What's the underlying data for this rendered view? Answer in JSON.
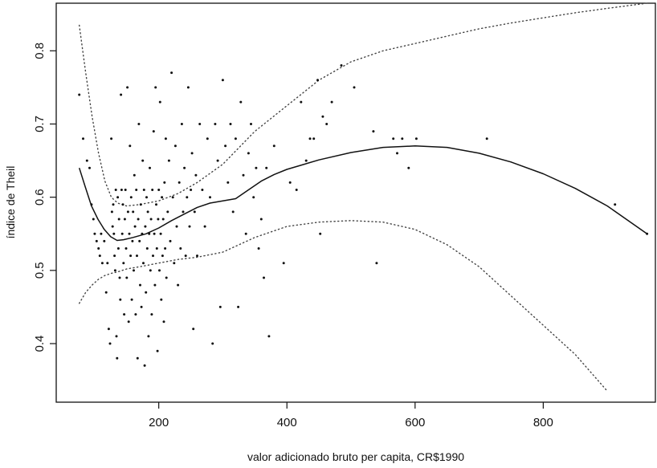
{
  "chart_data": {
    "type": "scatter",
    "title": "",
    "xlabel": "valor adicionado bruto per capita, CR$1990",
    "ylabel": "índice de Theil",
    "xlim": [
      40,
      975
    ],
    "ylim": [
      0.32,
      0.865
    ],
    "xticks": [
      200,
      400,
      600,
      800
    ],
    "yticks": [
      0.4,
      0.5,
      0.6,
      0.7,
      0.8
    ],
    "xtick_labels": [
      "200",
      "400",
      "600",
      "800"
    ],
    "ytick_labels": [
      "0.4",
      "0.5",
      "0.6",
      "0.7",
      "0.8"
    ],
    "grid": false,
    "legend": "none",
    "points": [
      [
        76,
        0.74
      ],
      [
        82,
        0.68
      ],
      [
        88,
        0.65
      ],
      [
        92,
        0.64
      ],
      [
        95,
        0.59
      ],
      [
        98,
        0.57
      ],
      [
        100,
        0.55
      ],
      [
        103,
        0.54
      ],
      [
        106,
        0.53
      ],
      [
        108,
        0.52
      ],
      [
        110,
        0.55
      ],
      [
        112,
        0.51
      ],
      [
        115,
        0.54
      ],
      [
        118,
        0.47
      ],
      [
        120,
        0.51
      ],
      [
        122,
        0.42
      ],
      [
        124,
        0.4
      ],
      [
        126,
        0.68
      ],
      [
        127,
        0.58
      ],
      [
        128,
        0.56
      ],
      [
        129,
        0.59
      ],
      [
        130,
        0.55
      ],
      [
        131,
        0.52
      ],
      [
        132,
        0.5
      ],
      [
        133,
        0.61
      ],
      [
        134,
        0.41
      ],
      [
        135,
        0.38
      ],
      [
        136,
        0.6
      ],
      [
        137,
        0.53
      ],
      [
        138,
        0.57
      ],
      [
        139,
        0.49
      ],
      [
        140,
        0.46
      ],
      [
        141,
        0.74
      ],
      [
        142,
        0.61
      ],
      [
        143,
        0.55
      ],
      [
        144,
        0.59
      ],
      [
        145,
        0.51
      ],
      [
        146,
        0.44
      ],
      [
        147,
        0.57
      ],
      [
        148,
        0.61
      ],
      [
        149,
        0.53
      ],
      [
        150,
        0.49
      ],
      [
        151,
        0.75
      ],
      [
        152,
        0.58
      ],
      [
        153,
        0.43
      ],
      [
        154,
        0.55
      ],
      [
        155,
        0.67
      ],
      [
        156,
        0.52
      ],
      [
        157,
        0.6
      ],
      [
        158,
        0.46
      ],
      [
        159,
        0.54
      ],
      [
        160,
        0.58
      ],
      [
        161,
        0.5
      ],
      [
        162,
        0.63
      ],
      [
        163,
        0.56
      ],
      [
        164,
        0.44
      ],
      [
        165,
        0.61
      ],
      [
        166,
        0.52
      ],
      [
        167,
        0.38
      ],
      [
        168,
        0.57
      ],
      [
        169,
        0.7
      ],
      [
        170,
        0.54
      ],
      [
        171,
        0.48
      ],
      [
        172,
        0.59
      ],
      [
        173,
        0.45
      ],
      [
        174,
        0.55
      ],
      [
        175,
        0.65
      ],
      [
        176,
        0.51
      ],
      [
        177,
        0.61
      ],
      [
        178,
        0.37
      ],
      [
        179,
        0.56
      ],
      [
        180,
        0.47
      ],
      [
        181,
        0.6
      ],
      [
        182,
        0.53
      ],
      [
        183,
        0.58
      ],
      [
        184,
        0.41
      ],
      [
        185,
        0.55
      ],
      [
        186,
        0.64
      ],
      [
        187,
        0.5
      ],
      [
        188,
        0.57
      ],
      [
        189,
        0.44
      ],
      [
        190,
        0.61
      ],
      [
        191,
        0.52
      ],
      [
        192,
        0.69
      ],
      [
        193,
        0.55
      ],
      [
        194,
        0.48
      ],
      [
        195,
        0.75
      ],
      [
        196,
        0.59
      ],
      [
        197,
        0.53
      ],
      [
        198,
        0.39
      ],
      [
        199,
        0.57
      ],
      [
        200,
        0.61
      ],
      [
        201,
        0.5
      ],
      [
        202,
        0.73
      ],
      [
        203,
        0.55
      ],
      [
        204,
        0.46
      ],
      [
        205,
        0.6
      ],
      [
        206,
        0.52
      ],
      [
        207,
        0.57
      ],
      [
        208,
        0.43
      ],
      [
        209,
        0.62
      ],
      [
        210,
        0.53
      ],
      [
        211,
        0.68
      ],
      [
        212,
        0.49
      ],
      [
        214,
        0.58
      ],
      [
        216,
        0.65
      ],
      [
        218,
        0.54
      ],
      [
        220,
        0.77
      ],
      [
        222,
        0.6
      ],
      [
        224,
        0.51
      ],
      [
        226,
        0.67
      ],
      [
        228,
        0.56
      ],
      [
        230,
        0.48
      ],
      [
        232,
        0.62
      ],
      [
        234,
        0.53
      ],
      [
        236,
        0.7
      ],
      [
        238,
        0.58
      ],
      [
        240,
        0.64
      ],
      [
        242,
        0.52
      ],
      [
        244,
        0.6
      ],
      [
        246,
        0.75
      ],
      [
        248,
        0.56
      ],
      [
        250,
        0.61
      ],
      [
        252,
        0.66
      ],
      [
        254,
        0.42
      ],
      [
        256,
        0.58
      ],
      [
        258,
        0.63
      ],
      [
        260,
        0.52
      ],
      [
        264,
        0.7
      ],
      [
        268,
        0.61
      ],
      [
        272,
        0.56
      ],
      [
        276,
        0.68
      ],
      [
        280,
        0.6
      ],
      [
        284,
        0.4
      ],
      [
        288,
        0.7
      ],
      [
        292,
        0.65
      ],
      [
        296,
        0.45
      ],
      [
        300,
        0.76
      ],
      [
        304,
        0.67
      ],
      [
        308,
        0.62
      ],
      [
        312,
        0.7
      ],
      [
        316,
        0.58
      ],
      [
        320,
        0.68
      ],
      [
        324,
        0.45
      ],
      [
        328,
        0.73
      ],
      [
        332,
        0.63
      ],
      [
        336,
        0.55
      ],
      [
        340,
        0.66
      ],
      [
        344,
        0.7
      ],
      [
        348,
        0.6
      ],
      [
        352,
        0.64
      ],
      [
        356,
        0.53
      ],
      [
        360,
        0.57
      ],
      [
        364,
        0.49
      ],
      [
        368,
        0.64
      ],
      [
        372,
        0.41
      ],
      [
        380,
        0.67
      ],
      [
        395,
        0.51
      ],
      [
        405,
        0.62
      ],
      [
        415,
        0.61
      ],
      [
        422,
        0.73
      ],
      [
        430,
        0.65
      ],
      [
        436,
        0.68
      ],
      [
        442,
        0.68
      ],
      [
        448,
        0.76
      ],
      [
        452,
        0.55
      ],
      [
        456,
        0.71
      ],
      [
        462,
        0.7
      ],
      [
        470,
        0.73
      ],
      [
        485,
        0.78
      ],
      [
        505,
        0.75
      ],
      [
        535,
        0.69
      ],
      [
        540,
        0.51
      ],
      [
        566,
        0.68
      ],
      [
        572,
        0.66
      ],
      [
        580,
        0.68
      ],
      [
        590,
        0.64
      ],
      [
        602,
        0.68
      ],
      [
        712,
        0.68
      ],
      [
        912,
        0.59
      ],
      [
        962,
        0.55
      ]
    ],
    "fit_curve": [
      [
        76,
        0.64
      ],
      [
        85,
        0.615
      ],
      [
        95,
        0.588
      ],
      [
        105,
        0.57
      ],
      [
        115,
        0.556
      ],
      [
        125,
        0.546
      ],
      [
        135,
        0.541
      ],
      [
        145,
        0.542
      ],
      [
        160,
        0.545
      ],
      [
        180,
        0.55
      ],
      [
        200,
        0.558
      ],
      [
        220,
        0.568
      ],
      [
        240,
        0.577
      ],
      [
        260,
        0.586
      ],
      [
        280,
        0.592
      ],
      [
        300,
        0.595
      ],
      [
        320,
        0.598
      ],
      [
        340,
        0.61
      ],
      [
        360,
        0.622
      ],
      [
        380,
        0.631
      ],
      [
        400,
        0.638
      ],
      [
        450,
        0.651
      ],
      [
        500,
        0.661
      ],
      [
        550,
        0.668
      ],
      [
        600,
        0.67
      ],
      [
        650,
        0.668
      ],
      [
        700,
        0.66
      ],
      [
        750,
        0.648
      ],
      [
        800,
        0.632
      ],
      [
        850,
        0.612
      ],
      [
        900,
        0.588
      ],
      [
        962,
        0.55
      ]
    ],
    "upper_band": [
      [
        76,
        0.835
      ],
      [
        86,
        0.77
      ],
      [
        96,
        0.71
      ],
      [
        106,
        0.66
      ],
      [
        116,
        0.622
      ],
      [
        126,
        0.6
      ],
      [
        136,
        0.592
      ],
      [
        150,
        0.588
      ],
      [
        170,
        0.59
      ],
      [
        200,
        0.595
      ],
      [
        230,
        0.605
      ],
      [
        260,
        0.62
      ],
      [
        300,
        0.645
      ],
      [
        350,
        0.69
      ],
      [
        400,
        0.725
      ],
      [
        450,
        0.76
      ],
      [
        500,
        0.785
      ],
      [
        550,
        0.8
      ],
      [
        600,
        0.81
      ],
      [
        650,
        0.82
      ],
      [
        700,
        0.83
      ],
      [
        750,
        0.838
      ],
      [
        800,
        0.845
      ],
      [
        850,
        0.852
      ],
      [
        900,
        0.858
      ],
      [
        962,
        0.865
      ]
    ],
    "lower_band": [
      [
        76,
        0.455
      ],
      [
        86,
        0.47
      ],
      [
        96,
        0.48
      ],
      [
        106,
        0.488
      ],
      [
        116,
        0.493
      ],
      [
        126,
        0.496
      ],
      [
        136,
        0.498
      ],
      [
        150,
        0.502
      ],
      [
        170,
        0.505
      ],
      [
        200,
        0.51
      ],
      [
        230,
        0.515
      ],
      [
        260,
        0.518
      ],
      [
        300,
        0.525
      ],
      [
        350,
        0.545
      ],
      [
        400,
        0.56
      ],
      [
        450,
        0.566
      ],
      [
        500,
        0.568
      ],
      [
        550,
        0.566
      ],
      [
        600,
        0.556
      ],
      [
        650,
        0.535
      ],
      [
        700,
        0.505
      ],
      [
        750,
        0.465
      ],
      [
        800,
        0.425
      ],
      [
        850,
        0.385
      ],
      [
        900,
        0.335
      ]
    ]
  }
}
